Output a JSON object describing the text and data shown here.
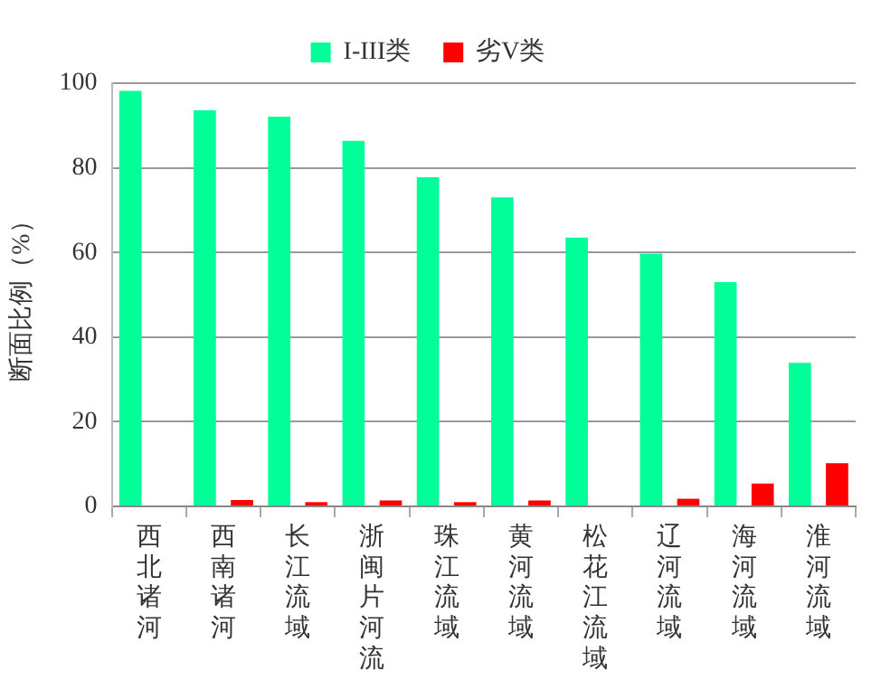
{
  "chart_data": {
    "type": "bar",
    "ylabel": "断面比例（%）",
    "categories": [
      "西北诸河",
      "西南诸河",
      "长江流域",
      "浙闽片河流",
      "珠江流域",
      "黄河流域",
      "松花江流域",
      "辽河流域",
      "海河流域",
      "淮河流域"
    ],
    "series": [
      {
        "name": "I-III类",
        "color": "#00ff99",
        "values": [
          98.2,
          93.6,
          92.1,
          86.4,
          77.8,
          73.0,
          63.5,
          59.7,
          53.0,
          33.9
        ]
      },
      {
        "name": "劣V类",
        "color": "#ff0000",
        "values": [
          0,
          1.5,
          1.0,
          1.4,
          1.0,
          1.4,
          0,
          1.8,
          5.4,
          10.2
        ]
      }
    ],
    "ylim": [
      0,
      100
    ],
    "yticks": [
      0,
      20,
      40,
      60,
      80,
      100
    ],
    "grid": "y",
    "legend": "top"
  }
}
